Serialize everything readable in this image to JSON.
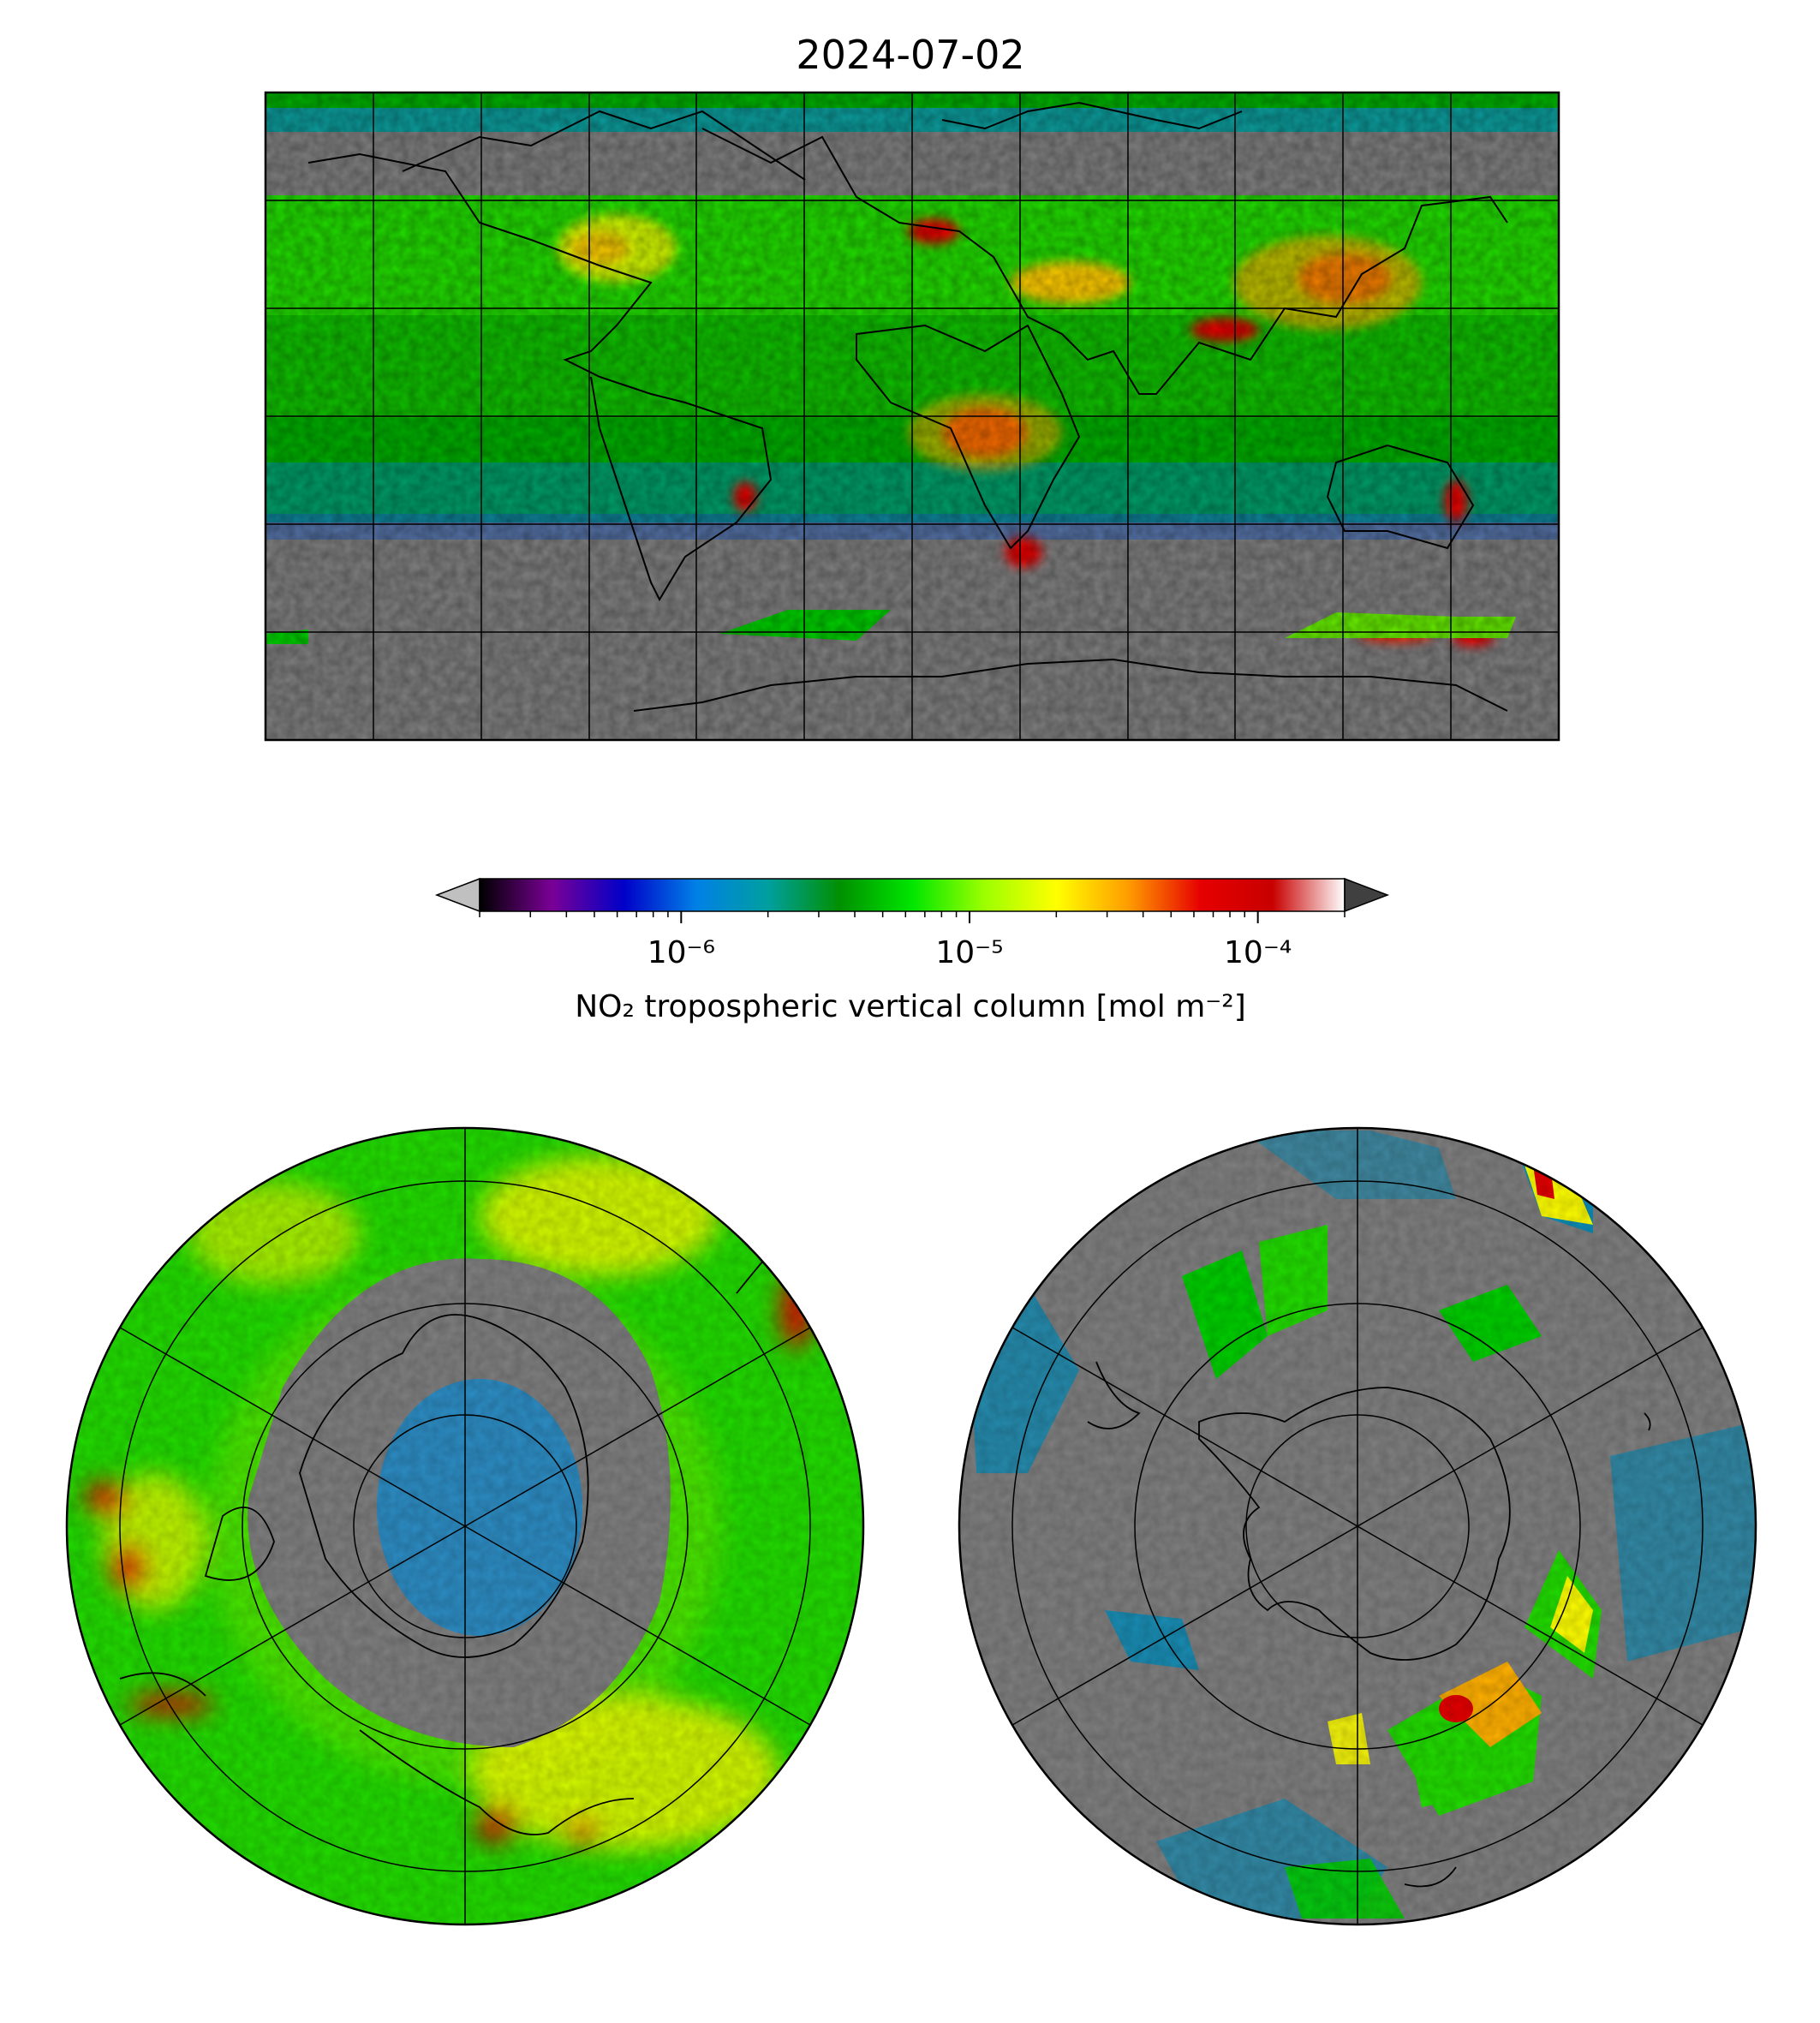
{
  "title": "2024-07-02",
  "colorbar": {
    "label": "NO₂ tropospheric vertical column [mol m⁻²]",
    "scale": "log",
    "range": [
      2e-07,
      0.0002
    ],
    "extend": "both",
    "ticks": [
      {
        "value": 1e-06,
        "label": "10⁻⁶"
      },
      {
        "value": 1e-05,
        "label": "10⁻⁵"
      },
      {
        "value": 0.0001,
        "label": "10⁻⁴"
      }
    ],
    "colormap": [
      "#000000",
      "#7a0096",
      "#0000c8",
      "#0080e6",
      "#009f9f",
      "#009000",
      "#00e600",
      "#9cff00",
      "#ffff00",
      "#ff9c00",
      "#e60000",
      "#c80000",
      "#ffffff"
    ],
    "under_color": "#c0c0c0",
    "over_color": "#404040"
  },
  "colors": {
    "no_data": "#808080",
    "background": "#ffffff",
    "coastline": "#000000",
    "gridline": "#000000"
  },
  "maps": [
    {
      "name": "global",
      "projection": "PlateCarree",
      "gridlines": {
        "lon_step_deg": 30,
        "lat_step_deg": 30
      }
    },
    {
      "name": "north-polar",
      "projection": "NorthPolarStereo",
      "gridlines": {
        "lon_step_deg": 60,
        "lat_step_deg": 15
      }
    },
    {
      "name": "south-polar",
      "projection": "SouthPolarStereo",
      "gridlines": {
        "lon_step_deg": 60,
        "lat_step_deg": 15
      }
    }
  ]
}
